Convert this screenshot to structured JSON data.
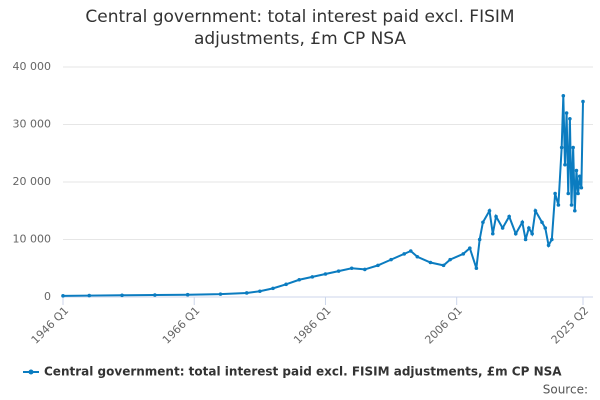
{
  "chart_data": {
    "type": "line",
    "title": "Central government: total interest paid excl. FISIM adjustments, £m CP NSA",
    "source": "Source:",
    "x": [
      "1946 Q1",
      "1950 Q1",
      "1955 Q1",
      "1960 Q1",
      "1965 Q1",
      "1970 Q1",
      "1974 Q1",
      "1976 Q1",
      "1978 Q1",
      "1980 Q1",
      "1982 Q1",
      "1984 Q1",
      "1986 Q1",
      "1988 Q1",
      "1990 Q1",
      "1992 Q1",
      "1994 Q1",
      "1996 Q1",
      "1998 Q1",
      "1999 Q1",
      "2000 Q1",
      "2002 Q1",
      "2004 Q1",
      "2005 Q1",
      "2007 Q1",
      "2008 Q1",
      "2009 Q1",
      "2009 Q3",
      "2010 Q1",
      "2011 Q1",
      "2011 Q3",
      "2012 Q1",
      "2013 Q1",
      "2014 Q1",
      "2015 Q1",
      "2016 Q1",
      "2016 Q3",
      "2017 Q1",
      "2017 Q3",
      "2018 Q1",
      "2019 Q1",
      "2019 Q3",
      "2020 Q1",
      "2020 Q3",
      "2021 Q1",
      "2021 Q3",
      "2022 Q1",
      "2022 Q2",
      "2022 Q3",
      "2022 Q4",
      "2023 Q1",
      "2023 Q2",
      "2023 Q3",
      "2023 Q4",
      "2024 Q1",
      "2024 Q2",
      "2024 Q3",
      "2024 Q4",
      "2025 Q1",
      "2025 Q2"
    ],
    "series": [
      {
        "name": "Central government: total interest paid excl. FISIM adjustments, £m CP NSA",
        "color": "#0b7cc0",
        "values": [
          200,
          250,
          300,
          350,
          400,
          500,
          700,
          1000,
          1500,
          2200,
          3000,
          3500,
          4000,
          4500,
          5000,
          4800,
          5500,
          6500,
          7500,
          8000,
          7000,
          6000,
          5500,
          6500,
          7500,
          8500,
          5000,
          10000,
          13000,
          15000,
          11000,
          14000,
          12000,
          14000,
          11000,
          13000,
          10000,
          12000,
          11000,
          15000,
          13000,
          12000,
          9000,
          10000,
          18000,
          16000,
          26000,
          35000,
          23000,
          32000,
          18000,
          31000,
          16000,
          26000,
          15000,
          22000,
          18000,
          21000,
          19000,
          34000
        ]
      }
    ],
    "xlim": [
      "1946 Q1",
      "2025 Q2"
    ],
    "xticks": [
      "1946 Q1",
      "1966 Q1",
      "1986 Q1",
      "2006 Q1",
      "2025 Q2"
    ],
    "ylim": [
      0,
      40000
    ],
    "yticks": [
      0,
      {
        "value": 10000,
        "label": "10 000"
      },
      {
        "value": 20000,
        "label": "20 000"
      },
      {
        "value": 30000,
        "label": "30 000"
      },
      {
        "value": 40000,
        "label": "40 000"
      }
    ],
    "grid": true
  }
}
